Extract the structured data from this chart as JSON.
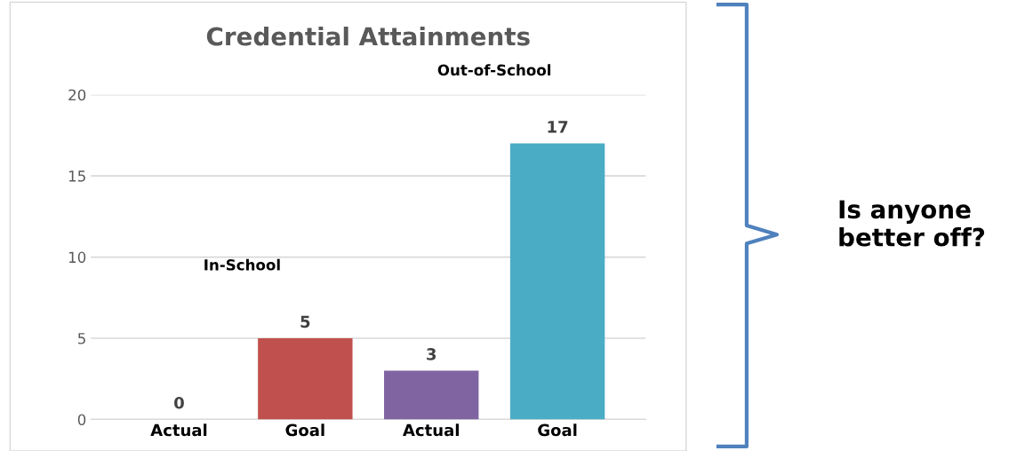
{
  "chart_data": {
    "type": "bar",
    "title": "Credential Attainments",
    "categories": [
      "Actual",
      "Goal",
      "Actual",
      "Goal"
    ],
    "values": [
      0,
      5,
      3,
      17
    ],
    "colors": [
      "#3e6a9a",
      "#c0504d",
      "#8064a2",
      "#4bacc6"
    ],
    "ylim": [
      0,
      20
    ],
    "yticks": [
      0,
      5,
      10,
      15,
      20
    ],
    "grid": "y",
    "data_labels": true,
    "annotations": [
      "In-School",
      "Out-of-School",
      "Is anyone better off?"
    ]
  }
}
